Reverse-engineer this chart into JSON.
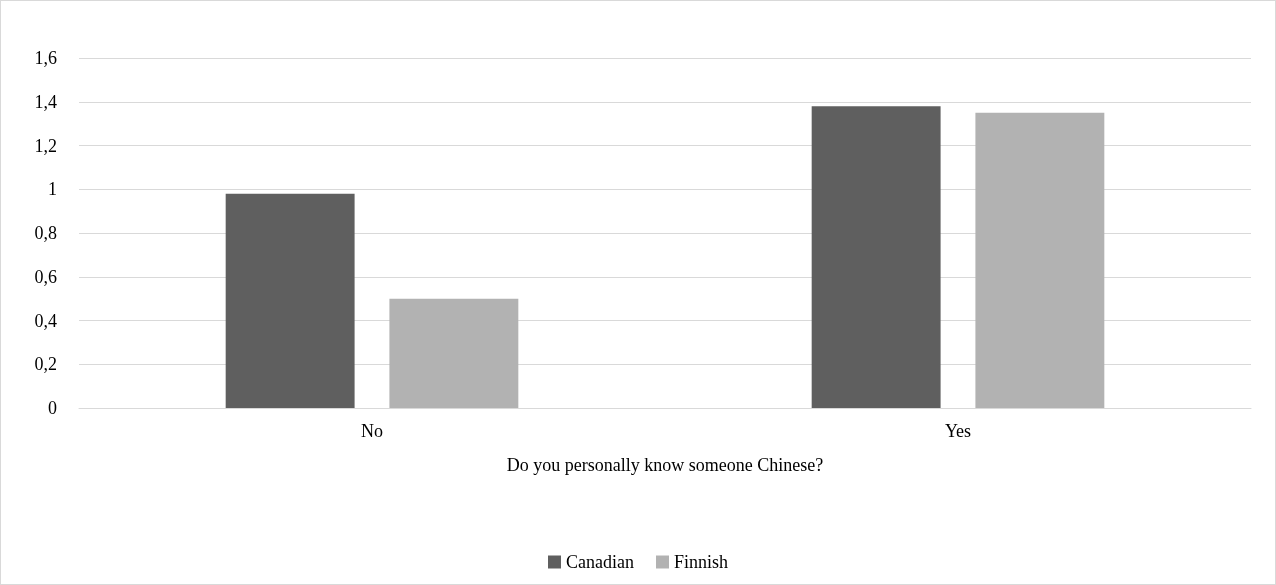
{
  "chart_data": {
    "type": "bar",
    "xlabel": "Do you personally know someone Chinese?",
    "categories": [
      "No",
      "Yes"
    ],
    "series": [
      {
        "name": "Canadian",
        "color": "#5f5f5f",
        "values": [
          0.98,
          1.38
        ]
      },
      {
        "name": "Finnish",
        "color": "#b2b2b2",
        "values": [
          0.5,
          1.35
        ]
      }
    ],
    "ylim": [
      0,
      1.6
    ],
    "yticks": [
      0,
      {
        "value": 0.2,
        "label": "0,2"
      },
      {
        "value": 0.4,
        "label": "0,4"
      },
      {
        "value": 0.6,
        "label": "0,6"
      },
      {
        "value": 0.8,
        "label": "0,8"
      },
      1,
      {
        "value": 1.2,
        "label": "1,2"
      },
      {
        "value": 1.4,
        "label": "1,4"
      },
      {
        "value": 1.6,
        "label": "1,6"
      }
    ],
    "grid": "y",
    "legend": "bottom"
  }
}
